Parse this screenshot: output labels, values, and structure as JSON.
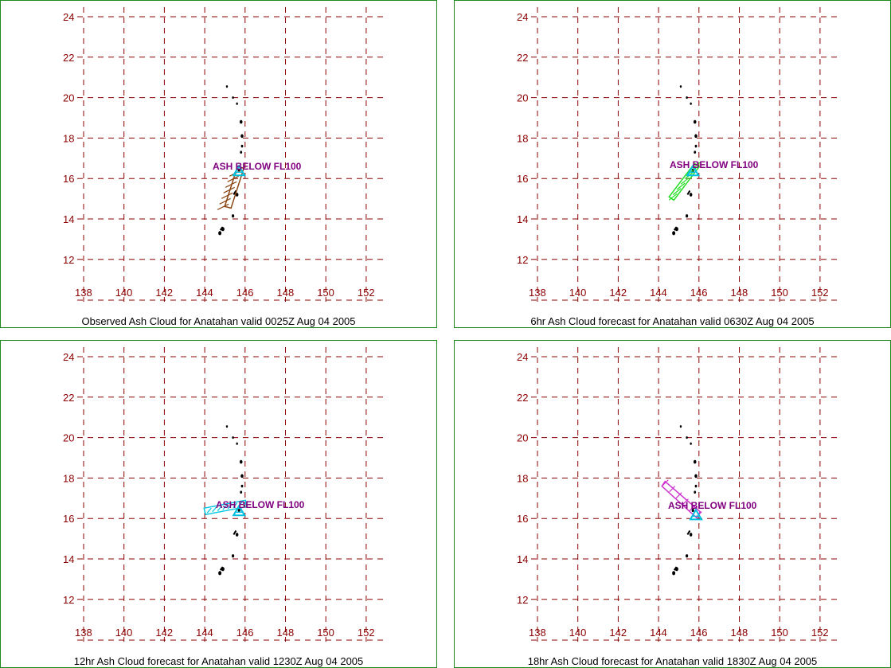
{
  "grid": {
    "lat_ticks": [
      "24",
      "22",
      "20",
      "18",
      "16",
      "14",
      "12"
    ],
    "lon_ticks": [
      "138",
      "140",
      "142",
      "144",
      "146",
      "148",
      "150",
      "152"
    ],
    "grid_color": "#8b0000",
    "frame_color": "#1e8a1e"
  },
  "panels": [
    {
      "caption": "Observed Ash Cloud for Anatahan valid 0025Z Aug 04 2005",
      "ash_label": "ASH BELOW FL100",
      "ash_label_color": "#800080",
      "cloud_color": "#8b4513",
      "cloud_shape": "diagonal-hatched-strip",
      "vent_marker_color": "#00c0e0"
    },
    {
      "caption": "6hr Ash Cloud forecast for Anatahan valid 0630Z Aug 04 2005",
      "ash_label": "ASH BELOW FL100",
      "ash_label_color": "#800080",
      "cloud_color": "#22dd22",
      "cloud_shape": "diagonal-hatched-strip",
      "vent_marker_color": "#00c0e0"
    },
    {
      "caption": "12hr Ash Cloud forecast for Anatahan valid 1230Z Aug 04 2005",
      "ash_label": "ASH BELOW FL100",
      "ash_label_color": "#800080",
      "cloud_color": "#00c8e0",
      "cloud_shape": "horizontal-hatched-strip",
      "vent_marker_color": "#00c0e0"
    },
    {
      "caption": "18hr Ash Cloud forecast for Anatahan valid 1830Z Aug 04 2005",
      "ash_label": "ASH BELOW FL100",
      "ash_label_color": "#800080",
      "cloud_color": "#cc33cc",
      "cloud_shape": "northwest-hatched-strip",
      "vent_marker_color": "#00c0e0"
    }
  ]
}
